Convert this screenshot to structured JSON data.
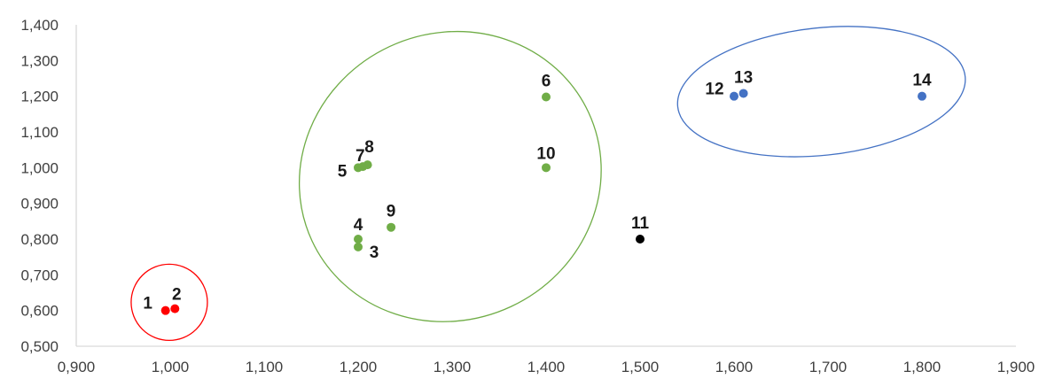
{
  "chart_data": {
    "type": "scatter",
    "title": "",
    "xlabel": "",
    "ylabel": "",
    "xlim": [
      0.9,
      1.9
    ],
    "ylim": [
      0.5,
      1.4
    ],
    "grid": false,
    "x_ticks": [
      "0,900",
      "1,000",
      "1,100",
      "1,200",
      "1,300",
      "1,400",
      "1,500",
      "1,600",
      "1,700",
      "1,800",
      "1,900"
    ],
    "y_ticks": [
      "0,500",
      "0,600",
      "0,700",
      "0,800",
      "0,900",
      "1,000",
      "1,100",
      "1,200",
      "1,300",
      "1,400"
    ],
    "colors": {
      "red": "#ff0000",
      "green": "#70ad47",
      "blue": "#4472c4",
      "black": "#000000",
      "axis": "#d9d9d9"
    },
    "points": [
      {
        "label": "1",
        "x": 0.995,
        "y": 0.6,
        "color": "red"
      },
      {
        "label": "2",
        "x": 1.005,
        "y": 0.605,
        "color": "red"
      },
      {
        "label": "3",
        "x": 1.2,
        "y": 0.778,
        "color": "green"
      },
      {
        "label": "4",
        "x": 1.2,
        "y": 0.8,
        "color": "green"
      },
      {
        "label": "5",
        "x": 1.2,
        "y": 1.0,
        "color": "green"
      },
      {
        "label": "6",
        "x": 1.4,
        "y": 1.198,
        "color": "green"
      },
      {
        "label": "7",
        "x": 1.205,
        "y": 1.003,
        "color": "green"
      },
      {
        "label": "8",
        "x": 1.21,
        "y": 1.008,
        "color": "green"
      },
      {
        "label": "9",
        "x": 1.235,
        "y": 0.833,
        "color": "green"
      },
      {
        "label": "10",
        "x": 1.4,
        "y": 1.0,
        "color": "green"
      },
      {
        "label": "11",
        "x": 1.5,
        "y": 0.8,
        "color": "black"
      },
      {
        "label": "12",
        "x": 1.6,
        "y": 1.2,
        "color": "blue"
      },
      {
        "label": "13",
        "x": 1.61,
        "y": 1.208,
        "color": "blue"
      },
      {
        "label": "14",
        "x": 1.8,
        "y": 1.2,
        "color": "blue"
      }
    ],
    "clusters": [
      {
        "color": "red",
        "members": [
          "1",
          "2"
        ]
      },
      {
        "color": "green",
        "members": [
          "3",
          "4",
          "5",
          "6",
          "7",
          "8",
          "9",
          "10"
        ]
      },
      {
        "color": "blue",
        "members": [
          "12",
          "13",
          "14"
        ]
      }
    ]
  }
}
